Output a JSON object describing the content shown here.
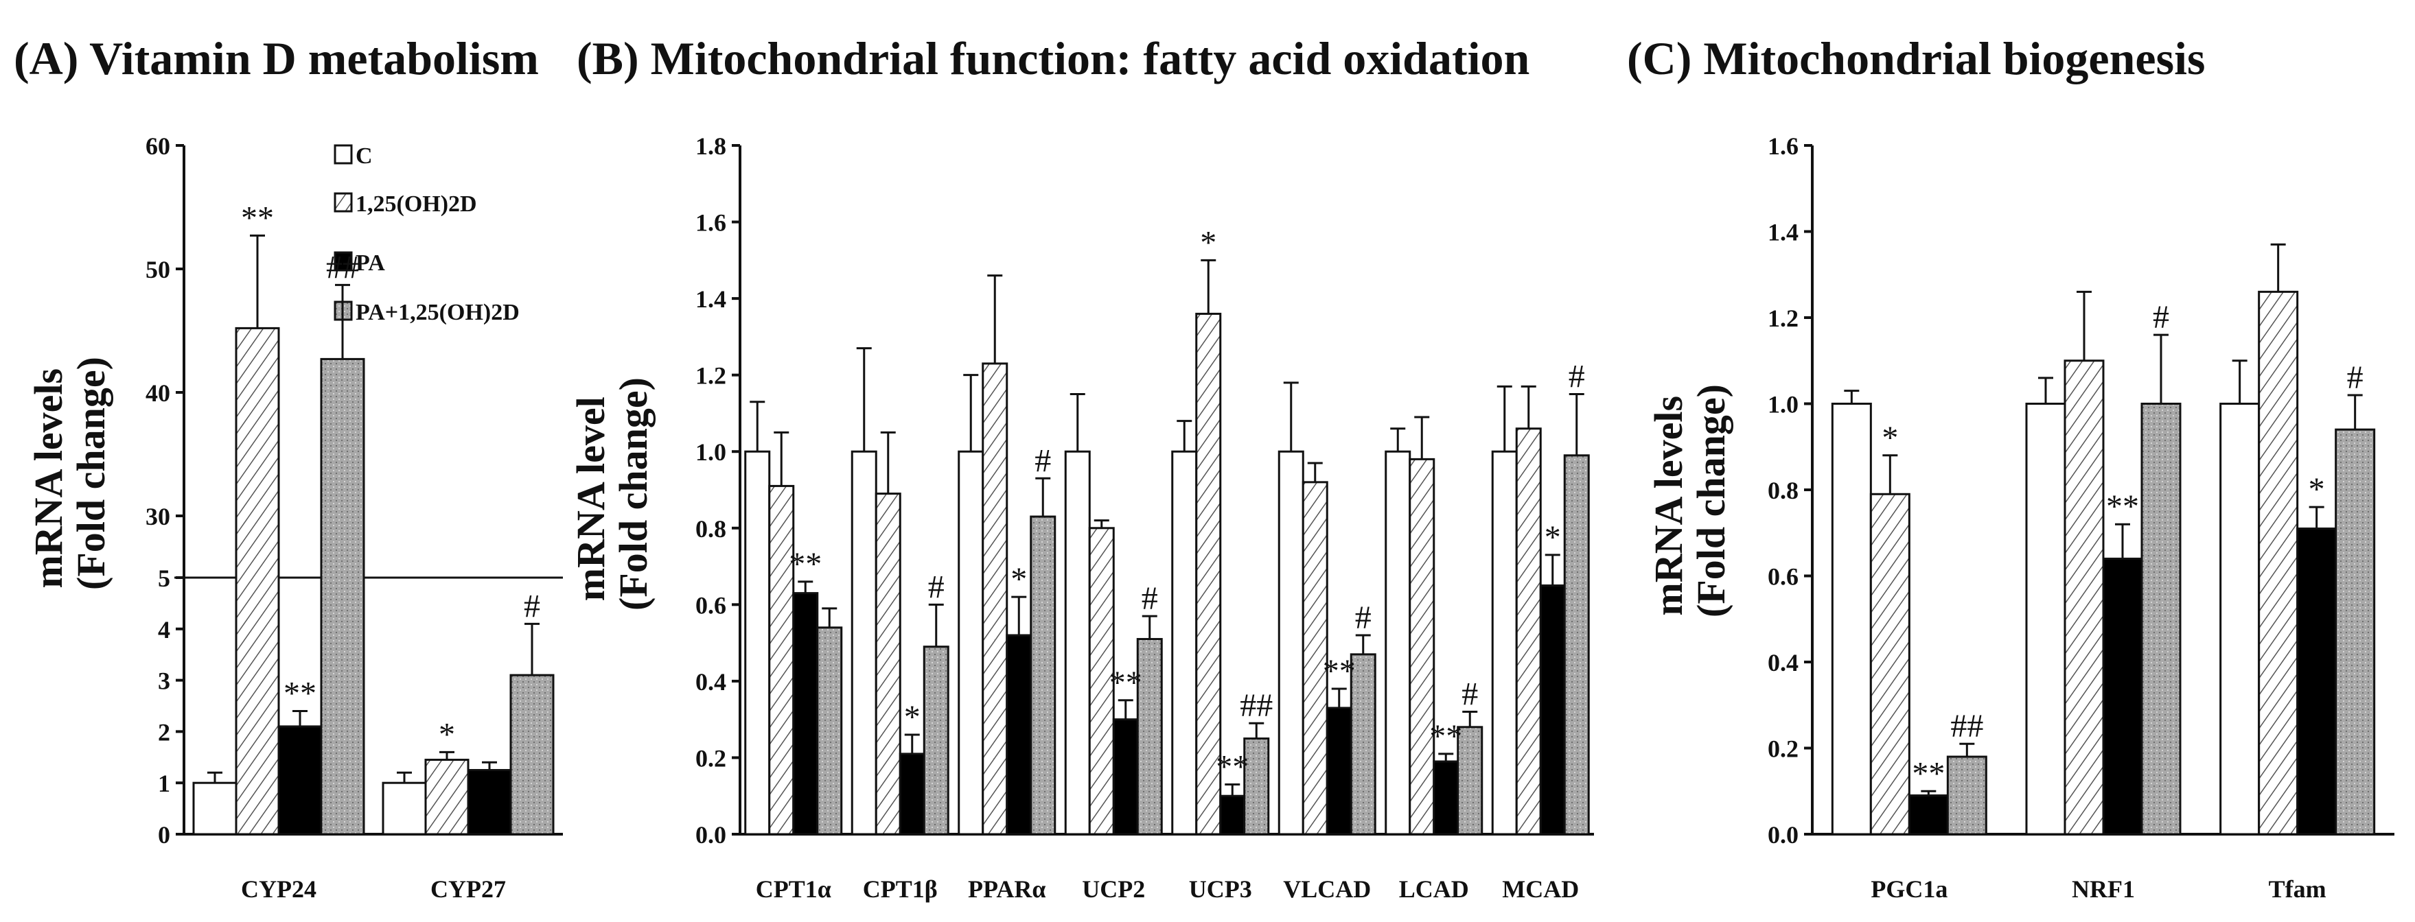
{
  "panels": [
    {
      "title": "(A) Vitamin D metabolism"
    },
    {
      "title": "(B) Mitochondrial function: fatty acid oxidation"
    },
    {
      "title": "(C) Mitochondrial biogenesis"
    }
  ],
  "legend": [
    "C",
    "1,25(OH)2D",
    "PA",
    "PA+1,25(OH)2D"
  ],
  "colors": {
    "control": "#ffffff",
    "pa": "#000000",
    "combo": "#a8a8a8",
    "axis": "#111111"
  },
  "chart_data": [
    {
      "type": "bar",
      "title": "(A) Vitamin D metabolism",
      "ylabel": "mRNA levels\n(Fold change)",
      "ylabel_lines": [
        "mRNA levels",
        "(Fold change)"
      ],
      "broken_axis": true,
      "ylim_lower": [
        0,
        5
      ],
      "ylim_upper": [
        25,
        60
      ],
      "yticks_lower": [
        "0",
        "1",
        "2",
        "3",
        "4",
        "5"
      ],
      "yticks_upper": [
        "30",
        "40",
        "50",
        "60"
      ],
      "categories": [
        "CYP24",
        "CYP27"
      ],
      "series": [
        {
          "name": "C",
          "values": [
            1.0,
            1.0
          ],
          "errors": [
            0.2,
            0.2
          ]
        },
        {
          "name": "1,25(OH)2D",
          "values": [
            45.2,
            1.45
          ],
          "errors": [
            7.5,
            0.15
          ]
        },
        {
          "name": "PA",
          "values": [
            2.1,
            1.25
          ],
          "errors": [
            0.3,
            0.15
          ]
        },
        {
          "name": "PA+1,25(OH)2D",
          "values": [
            42.7,
            3.1
          ],
          "errors": [
            6.0,
            1.0
          ]
        }
      ],
      "annotations": [
        {
          "category": 0,
          "series": 1,
          "text": "**"
        },
        {
          "category": 0,
          "series": 2,
          "text": "**"
        },
        {
          "category": 0,
          "series": 3,
          "text": "##"
        },
        {
          "category": 1,
          "series": 1,
          "text": "*"
        },
        {
          "category": 1,
          "series": 3,
          "text": "#"
        }
      ]
    },
    {
      "type": "bar",
      "title": "(B) Mitochondrial function: fatty acid oxidation",
      "ylabel": "mRNA level\n(Fold change)",
      "ylabel_lines": [
        "mRNA level",
        "(Fold change)"
      ],
      "ylim": [
        0,
        1.8
      ],
      "yticks": [
        "0.0",
        "0.2",
        "0.4",
        "0.6",
        "0.8",
        "1.0",
        "1.2",
        "1.4",
        "1.6",
        "1.8"
      ],
      "categories": [
        "CPT1α",
        "CPT1β",
        "PPARα",
        "UCP2",
        "UCP3",
        "VLCAD",
        "LCAD",
        "MCAD"
      ],
      "series": [
        {
          "name": "C",
          "values": [
            1.0,
            1.0,
            1.0,
            1.0,
            1.0,
            1.0,
            1.0,
            1.0
          ],
          "errors": [
            0.13,
            0.27,
            0.2,
            0.15,
            0.08,
            0.18,
            0.06,
            0.17
          ]
        },
        {
          "name": "1,25(OH)2D",
          "values": [
            0.91,
            0.89,
            1.23,
            0.8,
            1.36,
            0.92,
            0.98,
            1.06
          ],
          "errors": [
            0.14,
            0.16,
            0.23,
            0.02,
            0.14,
            0.05,
            0.11,
            0.11
          ]
        },
        {
          "name": "PA",
          "values": [
            0.63,
            0.21,
            0.52,
            0.3,
            0.1,
            0.33,
            0.19,
            0.65
          ],
          "errors": [
            0.03,
            0.05,
            0.1,
            0.05,
            0.03,
            0.05,
            0.02,
            0.08
          ]
        },
        {
          "name": "PA+1,25(OH)2D",
          "values": [
            0.54,
            0.49,
            0.83,
            0.51,
            0.25,
            0.47,
            0.28,
            0.99
          ],
          "errors": [
            0.05,
            0.11,
            0.1,
            0.06,
            0.04,
            0.05,
            0.04,
            0.16
          ]
        }
      ],
      "annotations": [
        {
          "category": 0,
          "series": 2,
          "text": "**"
        },
        {
          "category": 1,
          "series": 2,
          "text": "*"
        },
        {
          "category": 1,
          "series": 3,
          "text": "#"
        },
        {
          "category": 2,
          "series": 2,
          "text": "*"
        },
        {
          "category": 2,
          "series": 3,
          "text": "#"
        },
        {
          "category": 3,
          "series": 2,
          "text": "**"
        },
        {
          "category": 3,
          "series": 3,
          "text": "#"
        },
        {
          "category": 4,
          "series": 1,
          "text": "*"
        },
        {
          "category": 4,
          "series": 2,
          "text": "**"
        },
        {
          "category": 4,
          "series": 3,
          "text": "##"
        },
        {
          "category": 5,
          "series": 2,
          "text": "**"
        },
        {
          "category": 5,
          "series": 3,
          "text": "#"
        },
        {
          "category": 6,
          "series": 2,
          "text": "**"
        },
        {
          "category": 6,
          "series": 3,
          "text": "#"
        },
        {
          "category": 7,
          "series": 2,
          "text": "*"
        },
        {
          "category": 7,
          "series": 3,
          "text": "#"
        }
      ]
    },
    {
      "type": "bar",
      "title": "(C) Mitochondrial biogenesis",
      "ylabel": "mRNA levels\n(Fold change)",
      "ylabel_lines": [
        "mRNA levels",
        "(Fold change)"
      ],
      "ylim": [
        0,
        1.6
      ],
      "yticks": [
        "0.0",
        "0.2",
        "0.4",
        "0.6",
        "0.8",
        "1.0",
        "1.2",
        "1.4",
        "1.6"
      ],
      "categories": [
        "PGC1a",
        "NRF1",
        "Tfam"
      ],
      "series": [
        {
          "name": "C",
          "values": [
            1.0,
            1.0,
            1.0
          ],
          "errors": [
            0.03,
            0.06,
            0.1
          ]
        },
        {
          "name": "1,25(OH)2D",
          "values": [
            0.79,
            1.1,
            1.26
          ],
          "errors": [
            0.09,
            0.16,
            0.11
          ]
        },
        {
          "name": "PA",
          "values": [
            0.09,
            0.64,
            0.71
          ],
          "errors": [
            0.01,
            0.08,
            0.05
          ]
        },
        {
          "name": "PA+1,25(OH)2D",
          "values": [
            0.18,
            1.0,
            0.94
          ],
          "errors": [
            0.03,
            0.16,
            0.08
          ]
        }
      ],
      "annotations": [
        {
          "category": 0,
          "series": 1,
          "text": "*"
        },
        {
          "category": 0,
          "series": 2,
          "text": "**"
        },
        {
          "category": 0,
          "series": 3,
          "text": "##"
        },
        {
          "category": 1,
          "series": 2,
          "text": "**"
        },
        {
          "category": 1,
          "series": 3,
          "text": "#"
        },
        {
          "category": 2,
          "series": 2,
          "text": "*"
        },
        {
          "category": 2,
          "series": 3,
          "text": "#"
        }
      ]
    }
  ]
}
